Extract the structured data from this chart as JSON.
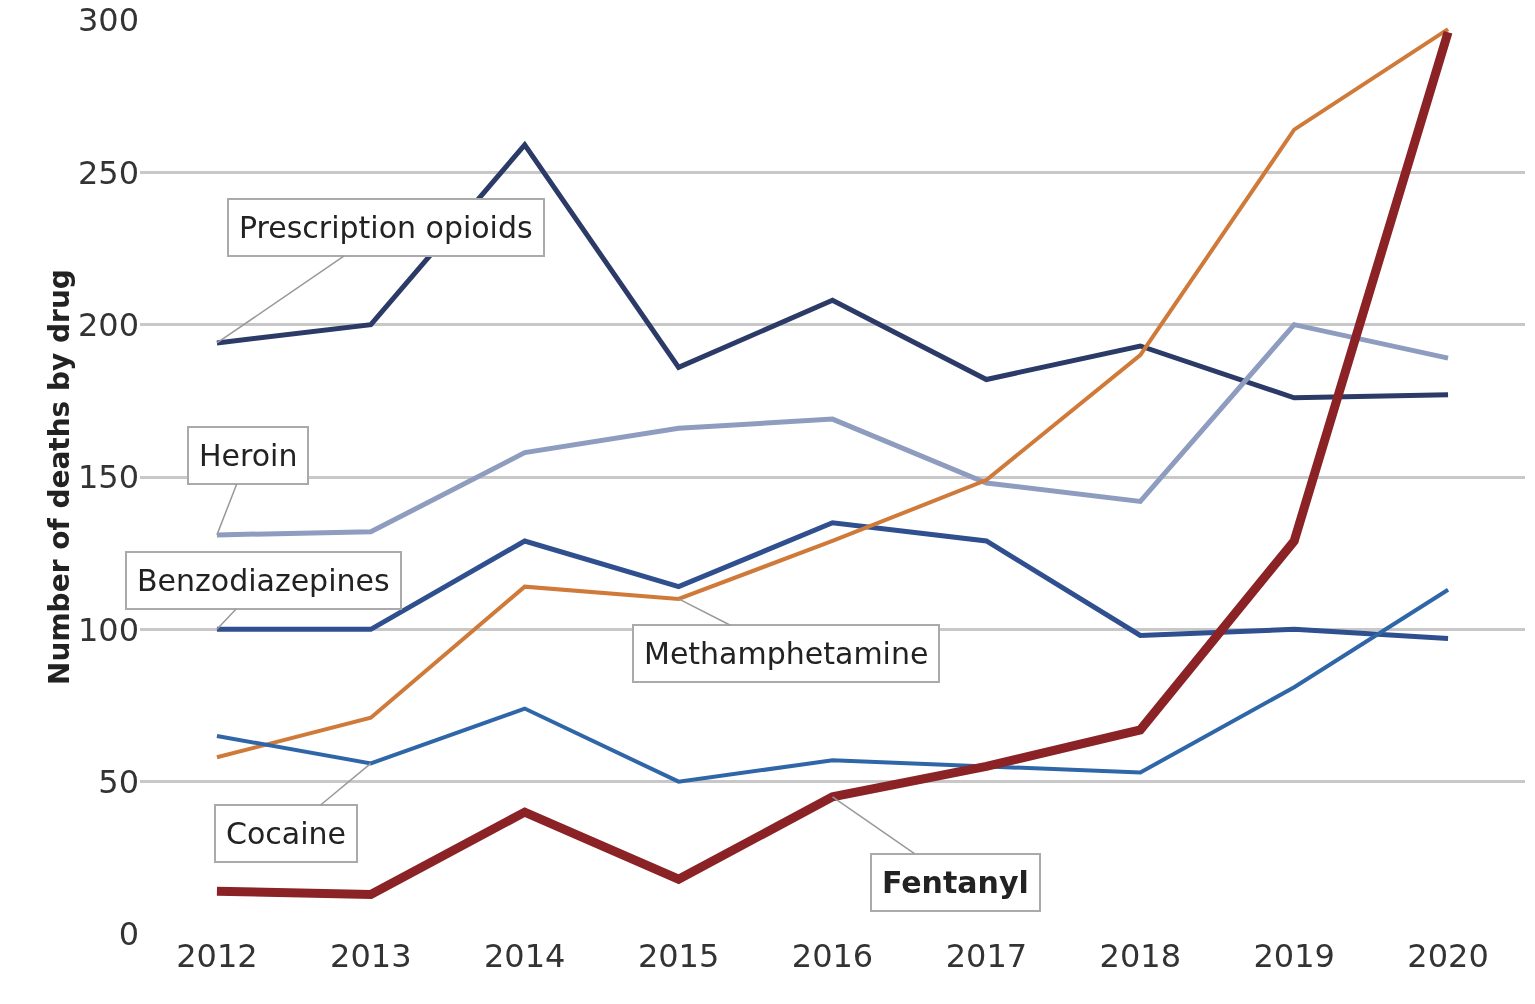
{
  "chart_data": {
    "type": "line",
    "ylabel": "Number of deaths by drug",
    "x": [
      2012,
      2013,
      2014,
      2015,
      2016,
      2017,
      2018,
      2019,
      2020
    ],
    "xlim": [
      2011.5,
      2020.5
    ],
    "xticks": [
      2012,
      2013,
      2014,
      2015,
      2016,
      2017,
      2018,
      2019,
      2020
    ],
    "ylim": [
      0,
      300
    ],
    "yticks": [
      0,
      50,
      100,
      150,
      200,
      250,
      300
    ],
    "grid": "y",
    "legend": false,
    "marker": "none",
    "line_style": "solid",
    "series": [
      {
        "name": "Prescription opioids",
        "color": "#2b3a67",
        "values": [
          194,
          200,
          259,
          186,
          208,
          182,
          193,
          176,
          177
        ]
      },
      {
        "name": "Heroin",
        "color": "#8e9cc0",
        "values": [
          131,
          132,
          158,
          166,
          169,
          148,
          142,
          200,
          189
        ]
      },
      {
        "name": "Benzodiazepines",
        "color": "#2f4f8f",
        "values": [
          100,
          100,
          129,
          114,
          135,
          129,
          98,
          100,
          97
        ]
      },
      {
        "name": "Methamphetamine",
        "color": "#d07a3a",
        "values": [
          58,
          71,
          114,
          110,
          129,
          149,
          190,
          264,
          297
        ]
      },
      {
        "name": "Cocaine",
        "color": "#2e66a8",
        "values": [
          65,
          56,
          74,
          50,
          57,
          null,
          53,
          81,
          113
        ]
      },
      {
        "name": "Fentanyl",
        "color": "#8b2326",
        "values": [
          14,
          13,
          40,
          18,
          45,
          55,
          67,
          129,
          296
        ]
      }
    ]
  }
}
